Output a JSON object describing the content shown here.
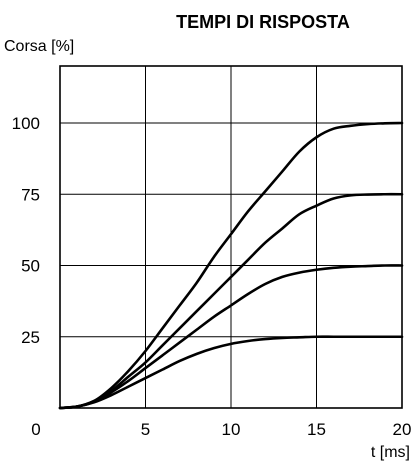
{
  "chart_data": {
    "type": "line",
    "title": "TEMPI DI RISPOSTA",
    "xlabel": "t [ms]",
    "ylabel": "Corsa [%]",
    "xlim": [
      0,
      20
    ],
    "ylim": [
      0,
      120
    ],
    "xticks": [
      0,
      5,
      10,
      15,
      20
    ],
    "xtick_labels": [
      "0",
      "5",
      "10",
      "15",
      "20"
    ],
    "yticks": [
      0,
      25,
      50,
      75,
      100
    ],
    "ytick_labels": [
      "0",
      "25",
      "50",
      "75",
      "100"
    ],
    "grid": true,
    "legend": false,
    "series": [
      {
        "x": [
          0,
          1,
          2,
          3,
          4,
          5,
          6,
          7,
          8,
          9,
          10,
          11,
          12,
          13,
          14,
          15,
          16,
          17,
          18,
          19,
          20
        ],
        "values": [
          0,
          0.5,
          2.5,
          7,
          13,
          20,
          28,
          36,
          44,
          53,
          61,
          69,
          76,
          83,
          90,
          95,
          98,
          99,
          99.6,
          99.9,
          100
        ]
      },
      {
        "x": [
          0,
          1,
          2,
          3,
          4,
          5,
          6,
          7,
          8,
          9,
          10,
          11,
          12,
          13,
          14,
          15,
          16,
          17,
          18,
          19,
          20
        ],
        "values": [
          0,
          0.5,
          2.5,
          6,
          11,
          16,
          22,
          28,
          34,
          40,
          46,
          52,
          58,
          63,
          68,
          71,
          73.5,
          74.6,
          74.9,
          75,
          75
        ]
      },
      {
        "x": [
          0,
          1,
          2,
          3,
          4,
          5,
          6,
          7,
          8,
          9,
          10,
          11,
          12,
          13,
          14,
          15,
          16,
          17,
          18,
          19,
          20
        ],
        "values": [
          0,
          0.5,
          2.2,
          5.5,
          9.5,
          14,
          18.5,
          23,
          27.5,
          32,
          36,
          40,
          43.5,
          46,
          47.5,
          48.5,
          49.2,
          49.6,
          49.8,
          50,
          50
        ]
      },
      {
        "x": [
          0,
          1,
          2,
          3,
          4,
          5,
          6,
          7,
          8,
          9,
          10,
          11,
          12,
          13,
          14,
          15,
          16,
          17,
          18,
          19,
          20
        ],
        "values": [
          0,
          0.5,
          2,
          4.5,
          7.5,
          10.5,
          13.5,
          16.5,
          19,
          21,
          22.5,
          23.5,
          24.2,
          24.6,
          24.8,
          25,
          25,
          25,
          25,
          25,
          25
        ]
      }
    ]
  }
}
